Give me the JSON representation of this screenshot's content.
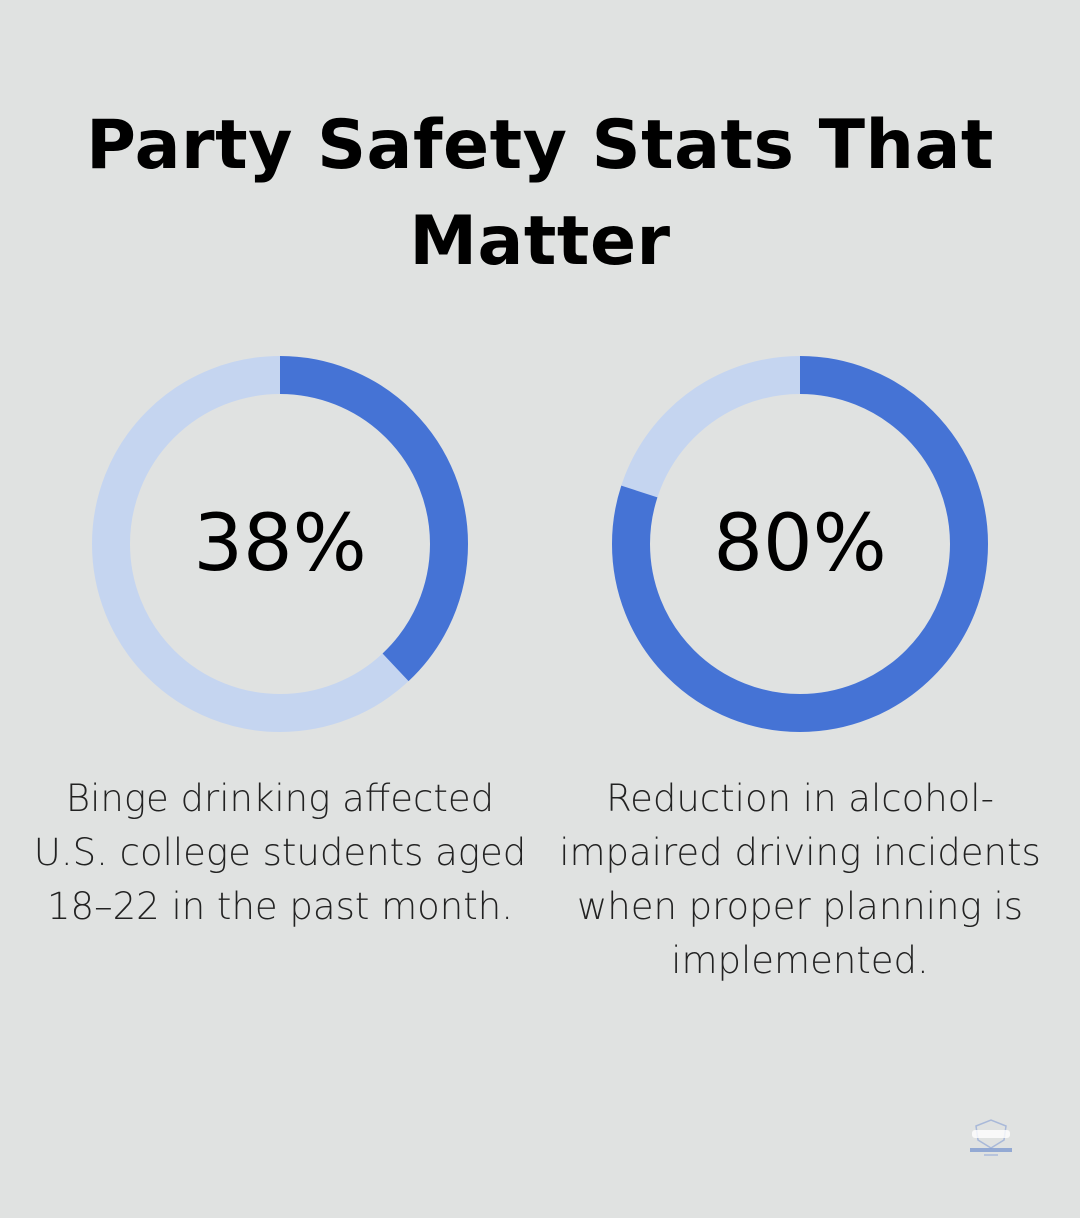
{
  "title": "Party Safety Stats That Matter",
  "colors": {
    "background": "#e0e2e1",
    "ring_fill": "#4573d5",
    "ring_track": "#c5d5f0"
  },
  "stats": [
    {
      "value": 38,
      "label": "38%",
      "description": "Binge drinking affected U.S. college students aged 18–22 in the past month."
    },
    {
      "value": 80,
      "label": "80%",
      "description": "Reduction in alcohol-impaired driving incidents when proper planning is implemented."
    }
  ],
  "logo": {
    "icon": "brand-logo"
  }
}
